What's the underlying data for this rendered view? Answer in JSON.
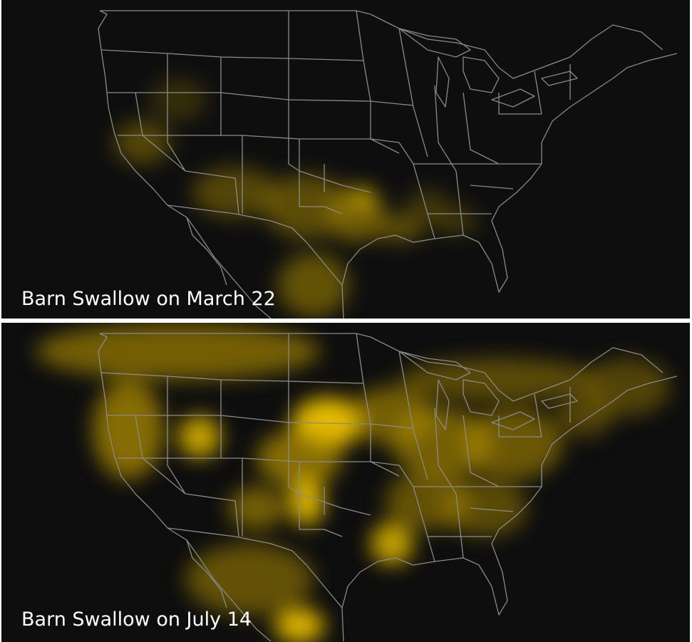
{
  "panels": [
    {
      "caption": "Barn Swallow on March 22"
    },
    {
      "caption": "Barn Swallow on July 14"
    }
  ]
}
